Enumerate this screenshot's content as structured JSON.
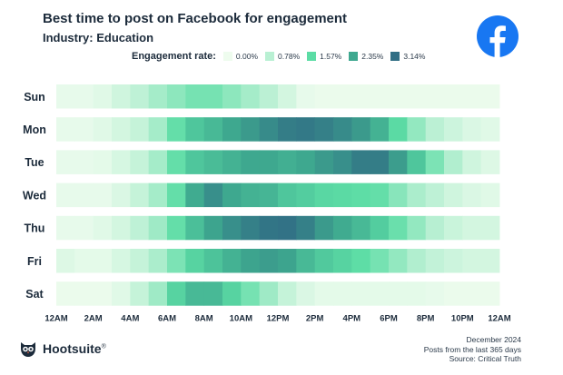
{
  "header": {
    "title": "Best time to post on Facebook for engagement",
    "subtitle": "Industry: Education"
  },
  "legend": {
    "label": "Engagement rate:",
    "items": [
      {
        "label": "0.00%",
        "color": "#eefcee"
      },
      {
        "label": "0.78%",
        "color": "#b9f0d3"
      },
      {
        "label": "1.57%",
        "color": "#5cdca5"
      },
      {
        "label": "2.35%",
        "color": "#3ea88f"
      },
      {
        "label": "3.14%",
        "color": "#316f85"
      }
    ]
  },
  "chart_data": {
    "type": "heatmap",
    "title": "Best time to post on Facebook for engagement",
    "subtitle": "Industry: Education",
    "value_unit": "engagement rate (%)",
    "scale": {
      "min": 0.0,
      "max": 3.14,
      "stops": [
        0.0,
        0.78,
        1.57,
        2.35,
        3.14
      ]
    },
    "rows": [
      "Sun",
      "Mon",
      "Tue",
      "Wed",
      "Thu",
      "Fri",
      "Sat"
    ],
    "hours": [
      "12AM",
      "1AM",
      "2AM",
      "3AM",
      "4AM",
      "5AM",
      "6AM",
      "7AM",
      "8AM",
      "9AM",
      "10AM",
      "11AM",
      "12PM",
      "1PM",
      "2PM",
      "3PM",
      "4PM",
      "5PM",
      "6PM",
      "7PM",
      "8PM",
      "9PM",
      "10PM",
      "11PM"
    ],
    "x_tick_labels": [
      "12AM",
      "2AM",
      "4AM",
      "6AM",
      "8AM",
      "10AM",
      "12PM",
      "2PM",
      "4PM",
      "6PM",
      "8PM",
      "10PM",
      "12AM"
    ],
    "values": [
      [
        0.1,
        0.1,
        0.2,
        0.45,
        0.7,
        0.95,
        1.15,
        1.35,
        1.35,
        1.15,
        0.95,
        0.75,
        0.4,
        0.1,
        0.05,
        0.05,
        0.05,
        0.05,
        0.05,
        0.05,
        0.05,
        0.05,
        0.05,
        0.05
      ],
      [
        0.1,
        0.1,
        0.2,
        0.4,
        0.6,
        0.95,
        1.5,
        1.9,
        2.1,
        2.35,
        2.55,
        2.75,
        2.95,
        3.0,
        2.9,
        2.75,
        2.55,
        2.2,
        1.6,
        1.1,
        0.75,
        0.5,
        0.3,
        0.2
      ],
      [
        0.1,
        0.1,
        0.15,
        0.35,
        0.6,
        0.95,
        1.5,
        1.9,
        2.05,
        2.2,
        2.35,
        2.35,
        2.25,
        2.35,
        2.55,
        2.7,
        2.95,
        2.95,
        2.5,
        1.9,
        1.3,
        0.85,
        0.45,
        0.25
      ],
      [
        0.1,
        0.1,
        0.1,
        0.3,
        0.6,
        0.95,
        1.5,
        2.3,
        2.7,
        2.35,
        2.2,
        2.15,
        1.9,
        1.8,
        1.65,
        1.6,
        1.55,
        1.5,
        1.2,
        0.9,
        0.7,
        0.45,
        0.3,
        0.2
      ],
      [
        0.1,
        0.1,
        0.2,
        0.4,
        0.7,
        1.0,
        1.5,
        2.0,
        2.4,
        2.7,
        2.9,
        3.05,
        3.1,
        2.9,
        2.55,
        2.3,
        2.1,
        1.8,
        1.45,
        1.1,
        0.8,
        0.55,
        0.4,
        0.4
      ],
      [
        0.25,
        0.15,
        0.15,
        0.35,
        0.6,
        0.9,
        1.3,
        1.7,
        1.95,
        2.2,
        2.4,
        2.5,
        2.4,
        2.1,
        1.85,
        1.7,
        1.55,
        1.35,
        1.1,
        0.85,
        0.65,
        0.5,
        0.4,
        0.4
      ],
      [
        0.05,
        0.05,
        0.05,
        0.2,
        0.6,
        1.0,
        1.7,
        2.1,
        2.1,
        1.7,
        1.35,
        1.0,
        0.6,
        0.3,
        0.15,
        0.15,
        0.15,
        0.15,
        0.15,
        0.15,
        0.1,
        0.05,
        0.05,
        0.05
      ]
    ]
  },
  "footer": {
    "brand": "Hootsuite",
    "trademark": "®",
    "notes": [
      "December 2024",
      "Posts from the last 365 days",
      "Source: Critical Truth"
    ]
  }
}
